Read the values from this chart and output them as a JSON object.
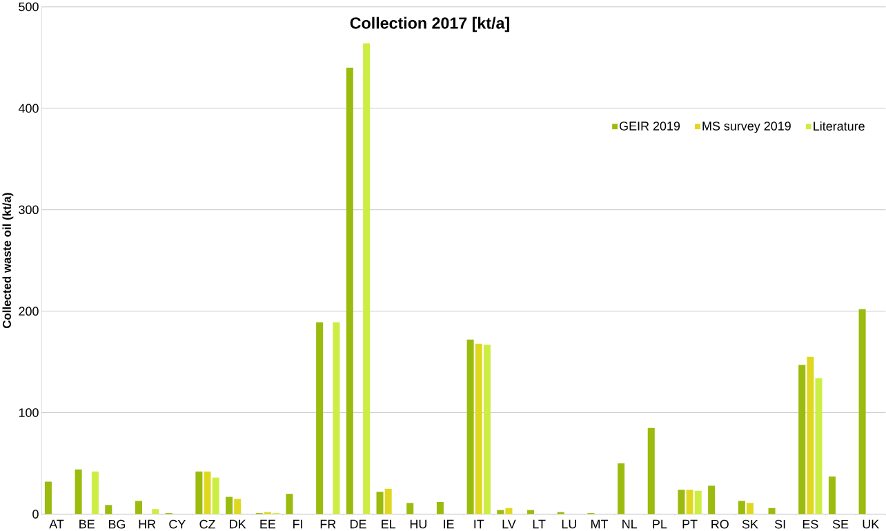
{
  "chart_data": {
    "type": "bar",
    "title": "Collection 2017 [kt/a]",
    "ylabel": "Collected waste oil (kt/a)",
    "categories": [
      "AT",
      "BE",
      "BG",
      "HR",
      "CY",
      "CZ",
      "DK",
      "EE",
      "FI",
      "FR",
      "DE",
      "EL",
      "HU",
      "IE",
      "IT",
      "LV",
      "LT",
      "LU",
      "MT",
      "NL",
      "PL",
      "PT",
      "RO",
      "SK",
      "SI",
      "ES",
      "SE",
      "UK"
    ],
    "series": [
      {
        "name": "GEIR 2019",
        "color": "#9bbb0e",
        "values": [
          32,
          44,
          9,
          13,
          1,
          42,
          17,
          1,
          20,
          189,
          440,
          22,
          11,
          12,
          172,
          4,
          4,
          2,
          1,
          50,
          85,
          24,
          28,
          13,
          6,
          147,
          37,
          202
        ]
      },
      {
        "name": "MS survey 2019",
        "color": "#e0d820",
        "values": [
          null,
          null,
          null,
          null,
          null,
          42,
          15,
          2,
          null,
          null,
          null,
          25,
          null,
          null,
          168,
          6,
          null,
          null,
          null,
          null,
          null,
          24,
          null,
          11,
          null,
          155,
          null,
          null
        ]
      },
      {
        "name": "Literature",
        "color": "#ccee44",
        "values": [
          null,
          42,
          null,
          5,
          null,
          36,
          null,
          1,
          null,
          189,
          464,
          null,
          null,
          null,
          167,
          null,
          null,
          null,
          null,
          null,
          null,
          23,
          null,
          null,
          null,
          134,
          null,
          null
        ]
      }
    ],
    "ylim": [
      0,
      500
    ],
    "yticks": [
      0,
      100,
      200,
      300,
      400,
      500
    ],
    "grid": "y",
    "legend": "top right"
  }
}
